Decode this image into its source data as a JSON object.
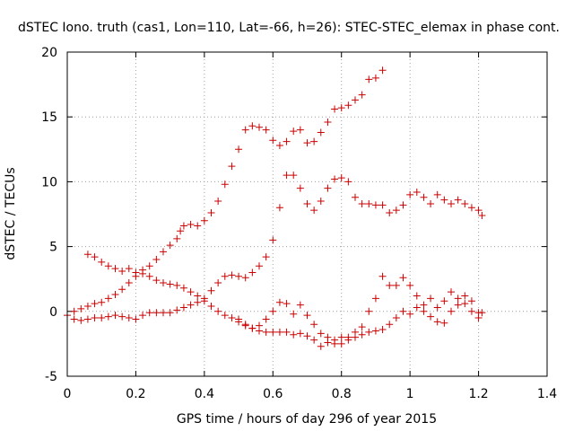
{
  "chart_data": {
    "type": "scatter",
    "title": "dSTEC Iono. truth (cas1, Lon=110, Lat=-66, h=26): STEC-STEC_elemax in phase cont.",
    "xlabel": "GPS time / hours of day 296 of year 2015",
    "ylabel": "dSTEC  / TECUs",
    "xlim": [
      0,
      1.4
    ],
    "ylim": [
      -5,
      20
    ],
    "xticks": [
      0,
      0.2,
      0.4,
      0.6,
      0.8,
      1,
      1.2,
      1.4
    ],
    "xtick_labels": [
      "0",
      "0.2",
      "0.4",
      "0.6",
      "0.8",
      "1",
      "1.2",
      "1.4"
    ],
    "yticks": [
      -5,
      0,
      5,
      10,
      15,
      20
    ],
    "ytick_labels": [
      "-5",
      "0",
      "5",
      "10",
      "15",
      "20"
    ],
    "grid": true,
    "marker": "+",
    "marker_color": "#cc0000",
    "series": [
      {
        "points": [
          [
            0.02,
            0.0
          ],
          [
            0.04,
            0.2
          ],
          [
            0.06,
            0.4
          ],
          [
            0.08,
            0.6
          ],
          [
            0.1,
            0.7
          ],
          [
            0.12,
            1.0
          ],
          [
            0.14,
            1.3
          ],
          [
            0.16,
            1.7
          ],
          [
            0.18,
            2.2
          ],
          [
            0.2,
            2.7
          ],
          [
            0.22,
            3.2
          ],
          [
            0.24,
            3.5
          ],
          [
            0.26,
            4.0
          ],
          [
            0.28,
            4.6
          ],
          [
            0.3,
            5.1
          ],
          [
            0.32,
            5.6
          ],
          [
            0.33,
            6.2
          ],
          [
            0.34,
            6.6
          ],
          [
            0.36,
            6.7
          ],
          [
            0.38,
            6.6
          ],
          [
            0.4,
            7.0
          ],
          [
            0.42,
            7.6
          ],
          [
            0.44,
            8.5
          ],
          [
            0.46,
            9.8
          ],
          [
            0.48,
            11.2
          ],
          [
            0.5,
            12.5
          ],
          [
            0.52,
            14.0
          ],
          [
            0.54,
            14.3
          ],
          [
            0.56,
            14.2
          ],
          [
            0.58,
            14.0
          ],
          [
            0.6,
            13.2
          ],
          [
            0.62,
            12.8
          ],
          [
            0.64,
            13.1
          ],
          [
            0.66,
            13.9
          ],
          [
            0.68,
            14.0
          ],
          [
            0.7,
            13.0
          ],
          [
            0.72,
            13.1
          ],
          [
            0.74,
            13.8
          ],
          [
            0.76,
            14.6
          ],
          [
            0.78,
            15.6
          ],
          [
            0.8,
            15.7
          ],
          [
            0.82,
            15.9
          ],
          [
            0.84,
            16.3
          ],
          [
            0.86,
            16.7
          ],
          [
            0.88,
            17.9
          ],
          [
            0.9,
            18.0
          ],
          [
            0.92,
            18.6
          ]
        ]
      },
      {
        "points": [
          [
            0.06,
            4.4
          ],
          [
            0.08,
            4.2
          ],
          [
            0.1,
            3.8
          ],
          [
            0.12,
            3.5
          ],
          [
            0.14,
            3.3
          ],
          [
            0.16,
            3.1
          ],
          [
            0.18,
            3.3
          ],
          [
            0.2,
            3.0
          ],
          [
            0.22,
            2.9
          ],
          [
            0.24,
            2.7
          ],
          [
            0.26,
            2.4
          ],
          [
            0.28,
            2.2
          ],
          [
            0.3,
            2.1
          ],
          [
            0.32,
            2.0
          ],
          [
            0.34,
            1.8
          ],
          [
            0.36,
            1.5
          ],
          [
            0.38,
            1.2
          ],
          [
            0.4,
            0.8
          ],
          [
            0.42,
            0.4
          ],
          [
            0.44,
            0.0
          ],
          [
            0.46,
            -0.3
          ],
          [
            0.48,
            -0.5
          ],
          [
            0.5,
            -0.8
          ],
          [
            0.52,
            -1.1
          ],
          [
            0.54,
            -1.3
          ],
          [
            0.56,
            -1.5
          ],
          [
            0.58,
            -1.6
          ],
          [
            0.6,
            -1.6
          ],
          [
            0.62,
            -1.6
          ],
          [
            0.64,
            -1.6
          ],
          [
            0.66,
            -1.8
          ],
          [
            0.68,
            -1.7
          ],
          [
            0.7,
            -1.9
          ],
          [
            0.72,
            -2.2
          ],
          [
            0.74,
            -2.7
          ],
          [
            0.76,
            -2.4
          ],
          [
            0.78,
            -2.2
          ],
          [
            0.8,
            -2.0
          ],
          [
            0.82,
            -2.2
          ],
          [
            0.84,
            -2.0
          ],
          [
            0.86,
            -1.8
          ],
          [
            0.88,
            -1.6
          ],
          [
            0.9,
            -1.5
          ],
          [
            0.92,
            -1.4
          ],
          [
            0.94,
            -1.0
          ],
          [
            0.96,
            -0.5
          ],
          [
            0.98,
            0.0
          ],
          [
            1.0,
            -0.2
          ],
          [
            1.02,
            0.3
          ],
          [
            1.04,
            0.0
          ],
          [
            1.06,
            -0.4
          ],
          [
            1.08,
            -0.8
          ],
          [
            1.1,
            -0.9
          ],
          [
            1.12,
            0.0
          ],
          [
            1.14,
            0.5
          ],
          [
            1.16,
            1.2
          ],
          [
            1.18,
            0.8
          ],
          [
            1.2,
            -0.1
          ]
        ]
      },
      {
        "points": [
          [
            0.0,
            -0.3
          ],
          [
            0.02,
            -0.6
          ],
          [
            0.04,
            -0.7
          ],
          [
            0.06,
            -0.6
          ],
          [
            0.08,
            -0.5
          ],
          [
            0.1,
            -0.5
          ],
          [
            0.12,
            -0.4
          ],
          [
            0.14,
            -0.3
          ],
          [
            0.16,
            -0.4
          ],
          [
            0.18,
            -0.5
          ],
          [
            0.2,
            -0.6
          ],
          [
            0.22,
            -0.3
          ],
          [
            0.24,
            -0.1
          ],
          [
            0.26,
            -0.1
          ],
          [
            0.28,
            -0.1
          ],
          [
            0.3,
            -0.1
          ],
          [
            0.32,
            0.1
          ],
          [
            0.34,
            0.3
          ],
          [
            0.36,
            0.5
          ],
          [
            0.38,
            0.7
          ],
          [
            0.4,
            1.0
          ],
          [
            0.42,
            1.6
          ],
          [
            0.44,
            2.2
          ],
          [
            0.46,
            2.7
          ],
          [
            0.48,
            2.8
          ],
          [
            0.5,
            2.7
          ],
          [
            0.52,
            2.6
          ],
          [
            0.54,
            3.0
          ],
          [
            0.56,
            3.5
          ],
          [
            0.58,
            4.2
          ],
          [
            0.6,
            5.5
          ],
          [
            0.62,
            8.0
          ],
          [
            0.64,
            10.5
          ],
          [
            0.66,
            10.5
          ],
          [
            0.68,
            9.5
          ],
          [
            0.7,
            8.3
          ],
          [
            0.72,
            7.8
          ],
          [
            0.74,
            8.5
          ],
          [
            0.76,
            9.5
          ],
          [
            0.78,
            10.2
          ],
          [
            0.8,
            10.3
          ],
          [
            0.82,
            10.0
          ],
          [
            0.84,
            8.8
          ],
          [
            0.86,
            8.3
          ],
          [
            0.88,
            8.3
          ],
          [
            0.9,
            8.2
          ],
          [
            0.92,
            8.2
          ],
          [
            0.94,
            7.6
          ],
          [
            0.96,
            7.8
          ],
          [
            0.98,
            8.2
          ],
          [
            1.0,
            9.0
          ],
          [
            1.02,
            9.2
          ],
          [
            1.04,
            8.8
          ],
          [
            1.06,
            8.3
          ],
          [
            1.08,
            9.0
          ],
          [
            1.1,
            8.6
          ],
          [
            1.12,
            8.3
          ],
          [
            1.14,
            8.6
          ],
          [
            1.16,
            8.3
          ],
          [
            1.18,
            8.0
          ],
          [
            1.2,
            7.8
          ],
          [
            1.21,
            7.4
          ]
        ]
      },
      {
        "points": [
          [
            0.5,
            -0.6
          ],
          [
            0.52,
            -1.0
          ],
          [
            0.54,
            -1.3
          ],
          [
            0.56,
            -1.1
          ],
          [
            0.58,
            -0.6
          ],
          [
            0.6,
            0.0
          ],
          [
            0.62,
            0.7
          ],
          [
            0.64,
            0.6
          ],
          [
            0.66,
            -0.2
          ],
          [
            0.68,
            0.5
          ],
          [
            0.7,
            -0.3
          ],
          [
            0.72,
            -1.0
          ],
          [
            0.74,
            -1.7
          ],
          [
            0.76,
            -2.0
          ],
          [
            0.78,
            -2.5
          ],
          [
            0.8,
            -2.5
          ],
          [
            0.82,
            -2.0
          ],
          [
            0.84,
            -1.6
          ],
          [
            0.86,
            -1.2
          ],
          [
            0.88,
            0.0
          ],
          [
            0.9,
            1.0
          ],
          [
            0.92,
            2.7
          ],
          [
            0.94,
            2.0
          ],
          [
            0.96,
            2.0
          ],
          [
            0.98,
            2.6
          ],
          [
            1.0,
            2.0
          ],
          [
            1.02,
            1.2
          ],
          [
            1.04,
            0.5
          ],
          [
            1.06,
            1.0
          ],
          [
            1.08,
            0.3
          ],
          [
            1.1,
            0.8
          ],
          [
            1.12,
            1.5
          ],
          [
            1.14,
            1.0
          ],
          [
            1.16,
            0.6
          ],
          [
            1.18,
            0.0
          ],
          [
            1.2,
            -0.5
          ],
          [
            1.21,
            -0.1
          ]
        ]
      }
    ]
  }
}
